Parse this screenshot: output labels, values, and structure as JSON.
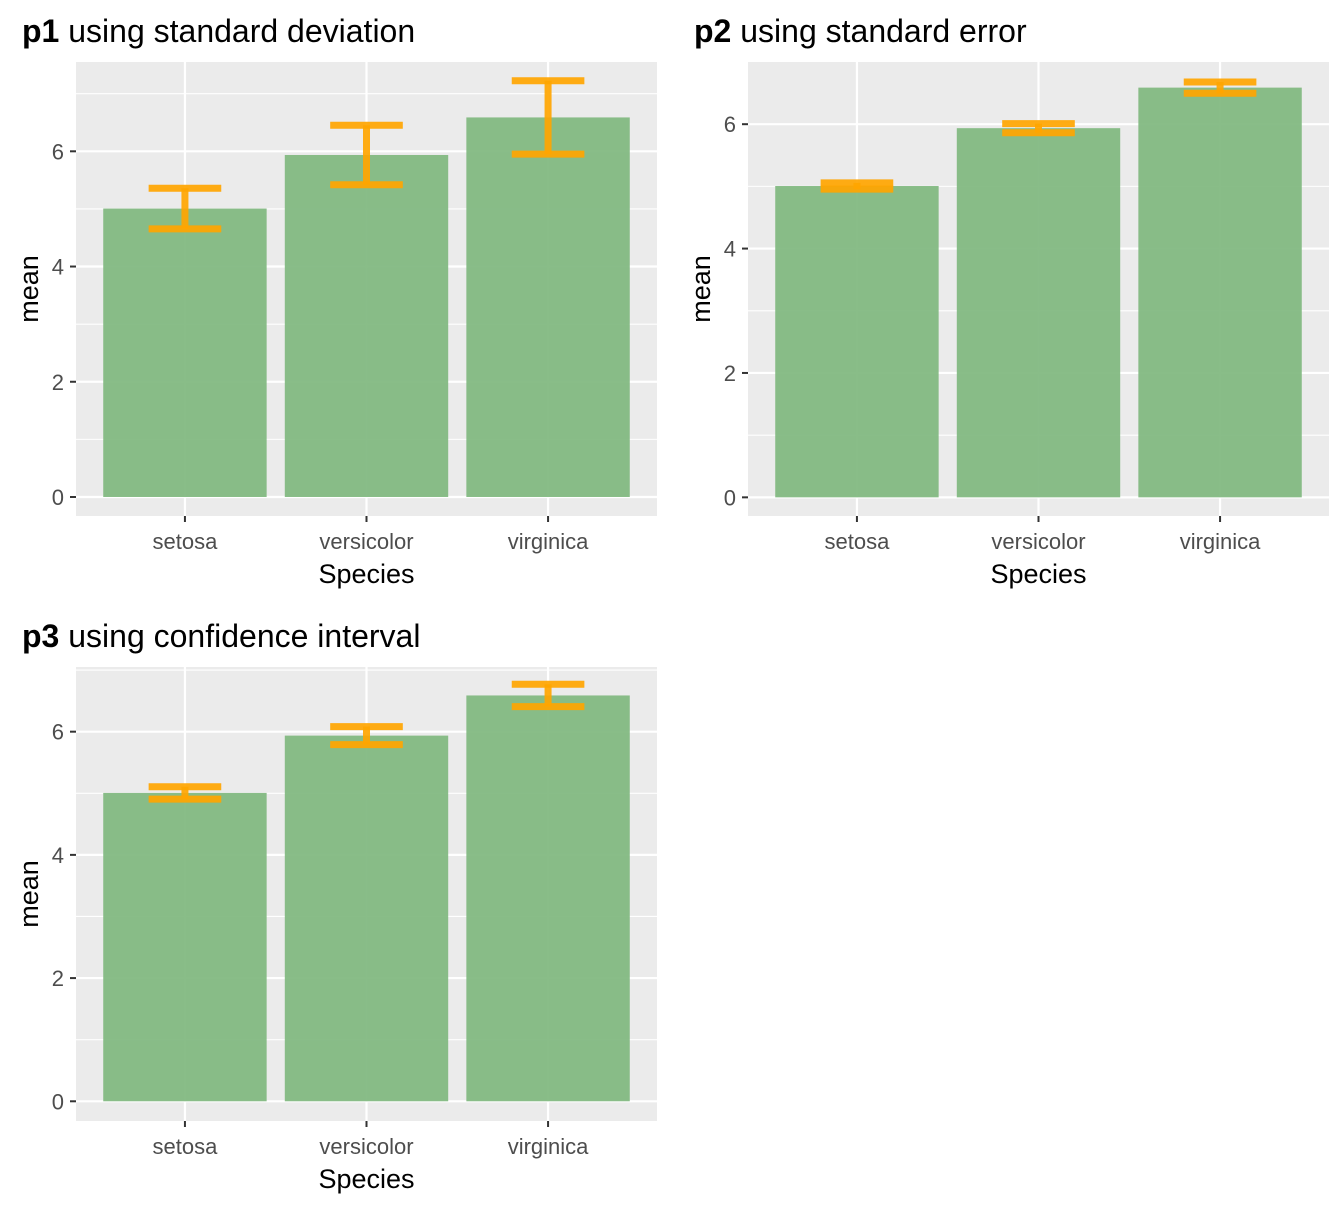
{
  "chart_data": [
    {
      "type": "bar",
      "tag": "p1",
      "title": "using standard deviation",
      "xlabel": "Species",
      "ylabel": "mean",
      "categories": [
        "setosa",
        "versicolor",
        "virginica"
      ],
      "values": [
        5.006,
        5.936,
        6.588
      ],
      "error_low": [
        4.654,
        5.42,
        5.952
      ],
      "error_high": [
        5.358,
        6.452,
        7.224
      ],
      "ylim": [
        -0.33,
        7.55
      ],
      "yticks": [
        0,
        2,
        4,
        6
      ],
      "grid": true,
      "colors": {
        "bar": "#7fb77e",
        "error": "#ffa500",
        "panel": "#ebebeb"
      }
    },
    {
      "type": "bar",
      "tag": "p2",
      "title": "using standard error",
      "xlabel": "Species",
      "ylabel": "mean",
      "categories": [
        "setosa",
        "versicolor",
        "virginica"
      ],
      "values": [
        5.006,
        5.936,
        6.588
      ],
      "error_low": [
        4.956,
        5.863,
        6.498
      ],
      "error_high": [
        5.056,
        6.009,
        6.678
      ],
      "ylim": [
        -0.3,
        7.0
      ],
      "yticks": [
        0,
        2,
        4,
        6
      ],
      "grid": true,
      "colors": {
        "bar": "#7fb77e",
        "error": "#ffa500",
        "panel": "#ebebeb"
      }
    },
    {
      "type": "bar",
      "tag": "p3",
      "title": "using confidence interval",
      "xlabel": "Species",
      "ylabel": "mean",
      "categories": [
        "setosa",
        "versicolor",
        "virginica"
      ],
      "values": [
        5.006,
        5.936,
        6.588
      ],
      "error_low": [
        4.906,
        5.789,
        6.407
      ],
      "error_high": [
        5.106,
        6.083,
        6.769
      ],
      "ylim": [
        -0.32,
        7.05
      ],
      "yticks": [
        0,
        2,
        4,
        6
      ],
      "grid": true,
      "colors": {
        "bar": "#7fb77e",
        "error": "#ffa500",
        "panel": "#ebebeb"
      }
    }
  ]
}
